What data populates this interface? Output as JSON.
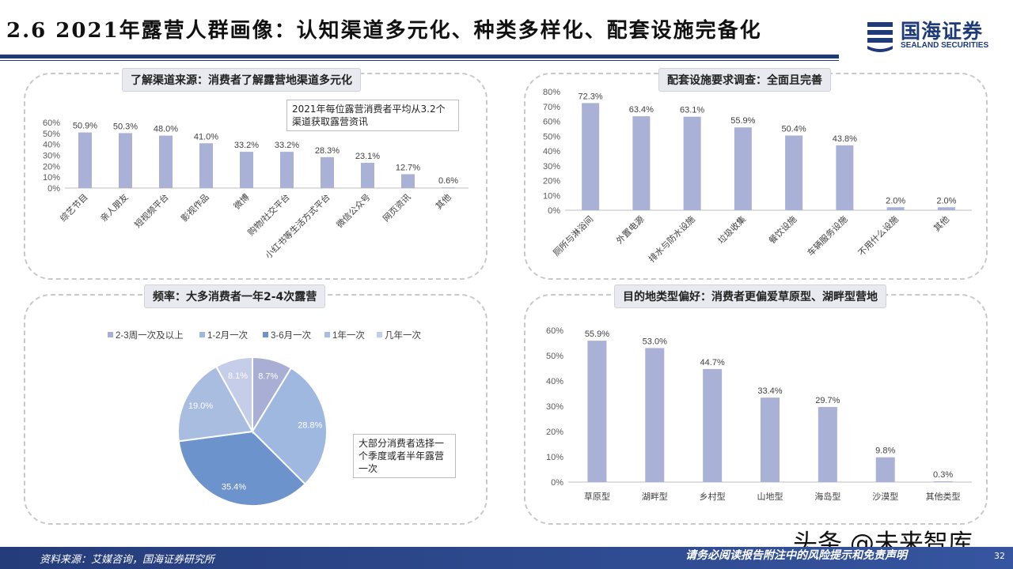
{
  "header": {
    "title": "2.6 2021年露营人群画像：认知渠道多元化、种类多样化、配套设施完备化",
    "logo_cn": "国海证券",
    "logo_en": "SEALAND SECURITIES"
  },
  "panels": {
    "channels": {
      "title": "了解渠道来源：消费者了解露营地渠道多元化",
      "note": "2021年每位露营消费者平均从3.2个渠道获取露营资讯"
    },
    "facilities": {
      "title": "配套设施要求调查：全面且完善"
    },
    "frequency": {
      "title": "频率：大多消费者一年2-4次露营",
      "note": "大部分消费者选择一个季度或者半年露营一次"
    },
    "destination": {
      "title": "目的地类型偏好：消费者更偏爱草原型、湖畔型营地"
    }
  },
  "chart_data": [
    {
      "type": "bar",
      "categories": [
        "综艺节目",
        "亲人朋友",
        "短视频平台",
        "影视作品",
        "微博",
        "购物/社交平台",
        "小红书等生活方式平台",
        "微信公众号",
        "网页资讯",
        "其他"
      ],
      "values": [
        50.9,
        50.3,
        48.0,
        41.0,
        33.2,
        33.2,
        28.3,
        23.1,
        12.7,
        0.6
      ],
      "value_labels": [
        "50.9%",
        "50.3%",
        "48.0%",
        "41.0%",
        "33.2%",
        "33.2%",
        "28.3%",
        "23.1%",
        "12.7%",
        "0.6%"
      ],
      "yticks": [
        "0%",
        "10%",
        "20%",
        "30%",
        "40%",
        "50%",
        "60%"
      ],
      "ylim": [
        0,
        60
      ]
    },
    {
      "type": "bar",
      "categories": [
        "厕所与淋浴间",
        "外置电源",
        "排水与防水设施",
        "垃圾收集",
        "餐饮设施",
        "车辆服务设施",
        "不用什么设施",
        "其他"
      ],
      "values": [
        72.3,
        63.4,
        63.1,
        55.9,
        50.4,
        43.8,
        2.0,
        2.0
      ],
      "value_labels": [
        "72.3%",
        "63.4%",
        "63.1%",
        "55.9%",
        "50.4%",
        "43.8%",
        "2.0%",
        "2.0%"
      ],
      "yticks": [
        "0%",
        "10%",
        "20%",
        "30%",
        "40%",
        "50%",
        "60%",
        "70%",
        "80%"
      ],
      "ylim": [
        0,
        80
      ]
    },
    {
      "type": "pie",
      "legend": [
        "2-3周一次及以上",
        "1-2月一次",
        "3-6月一次",
        "1年一次",
        "几年一次"
      ],
      "values": [
        8.7,
        28.8,
        35.4,
        19.0,
        8.1
      ],
      "value_labels": [
        "8.7%",
        "28.8%",
        "35.4%",
        "19.0%",
        "8.1%"
      ],
      "legend_placement": "top",
      "colors": [
        "#a9afd4",
        "#9fb8e0",
        "#6d93cd",
        "#a8bde0",
        "#c5cde8"
      ]
    },
    {
      "type": "bar",
      "categories": [
        "草原型",
        "湖畔型",
        "乡村型",
        "山地型",
        "海岛型",
        "沙漠型",
        "其他类型"
      ],
      "values": [
        55.9,
        53.0,
        44.7,
        33.4,
        29.7,
        9.8,
        0.3
      ],
      "value_labels": [
        "55.9%",
        "53.0%",
        "44.7%",
        "33.4%",
        "29.7%",
        "9.8%",
        "0.3%"
      ],
      "yticks": [
        "0%",
        "10%",
        "20%",
        "30%",
        "40%",
        "50%",
        "60%"
      ],
      "ylim": [
        0,
        60
      ]
    }
  ],
  "footer": {
    "source": "资料来源：艾媒咨询，国海证券研究所",
    "disclaimer": "请务必阅读报告附注中的风险提示和免责声明",
    "page": "32",
    "watermark": "头条 @未来智库"
  },
  "colors": {
    "bar": "#aab1d6",
    "brand": "#1e3a78"
  }
}
